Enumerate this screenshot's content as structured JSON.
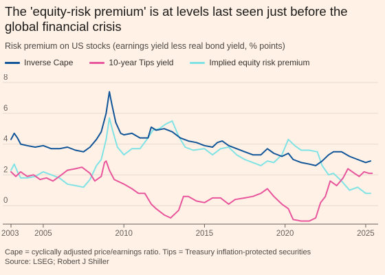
{
  "title": "The 'equity-risk premium' is at levels last seen just before the global financial crisis",
  "subtitle": "Risk premium on US stocks (earnings yield less real bond yield, % points)",
  "footnote": "Cape = cyclically adjusted price/earnings ratio. Tips = Treasury inflation-protected securities",
  "source": "Source: LSEG; Robert J Shiller",
  "chart_data": {
    "type": "line",
    "xlim": [
      2003,
      2025.6
    ],
    "ylim": [
      -1.2,
      8
    ],
    "yticks": [
      0,
      2,
      4,
      6,
      8
    ],
    "xticks": [
      2003,
      2005,
      2010,
      2015,
      2020,
      2025
    ],
    "grid": true,
    "legend_position": "top-left",
    "series": [
      {
        "name": "Inverse Cape",
        "color": "#0f5499",
        "points": [
          [
            2003,
            4.3
          ],
          [
            2003.2,
            4.7
          ],
          [
            2003.4,
            4.4
          ],
          [
            2003.6,
            4.0
          ],
          [
            2004.0,
            3.9
          ],
          [
            2004.5,
            3.8
          ],
          [
            2005.0,
            3.9
          ],
          [
            2005.5,
            3.7
          ],
          [
            2006.0,
            3.7
          ],
          [
            2006.5,
            3.8
          ],
          [
            2007.0,
            3.6
          ],
          [
            2007.5,
            3.5
          ],
          [
            2007.9,
            3.8
          ],
          [
            2008.3,
            4.3
          ],
          [
            2008.6,
            4.8
          ],
          [
            2008.9,
            6.0
          ],
          [
            2009.1,
            7.4
          ],
          [
            2009.25,
            6.6
          ],
          [
            2009.5,
            5.4
          ],
          [
            2009.8,
            4.7
          ],
          [
            2010.0,
            4.6
          ],
          [
            2010.5,
            4.7
          ],
          [
            2011.0,
            4.4
          ],
          [
            2011.5,
            4.4
          ],
          [
            2011.7,
            5.1
          ],
          [
            2012.0,
            4.9
          ],
          [
            2012.5,
            5.0
          ],
          [
            2013.0,
            4.8
          ],
          [
            2013.5,
            4.4
          ],
          [
            2014.0,
            4.2
          ],
          [
            2014.5,
            4.1
          ],
          [
            2015.0,
            3.9
          ],
          [
            2015.5,
            3.8
          ],
          [
            2015.8,
            4.1
          ],
          [
            2016.1,
            4.2
          ],
          [
            2016.5,
            3.9
          ],
          [
            2017.0,
            3.7
          ],
          [
            2017.5,
            3.5
          ],
          [
            2018.0,
            3.3
          ],
          [
            2018.5,
            3.3
          ],
          [
            2018.9,
            3.7
          ],
          [
            2019.3,
            3.4
          ],
          [
            2019.8,
            3.2
          ],
          [
            2020.2,
            3.4
          ],
          [
            2020.5,
            3.0
          ],
          [
            2021.0,
            2.8
          ],
          [
            2021.5,
            2.7
          ],
          [
            2021.9,
            2.6
          ],
          [
            2022.3,
            2.9
          ],
          [
            2022.7,
            3.3
          ],
          [
            2023.0,
            3.5
          ],
          [
            2023.5,
            3.5
          ],
          [
            2024.0,
            3.2
          ],
          [
            2024.5,
            3.0
          ],
          [
            2025.0,
            2.8
          ],
          [
            2025.3,
            2.9
          ]
        ]
      },
      {
        "name": "10-year Tips yield",
        "color": "#e8559c",
        "points": [
          [
            2003,
            2.2
          ],
          [
            2003.3,
            1.9
          ],
          [
            2003.6,
            2.2
          ],
          [
            2004.0,
            1.9
          ],
          [
            2004.4,
            2.0
          ],
          [
            2004.8,
            1.7
          ],
          [
            2005.2,
            1.8
          ],
          [
            2005.6,
            1.6
          ],
          [
            2006.0,
            1.9
          ],
          [
            2006.5,
            2.3
          ],
          [
            2007.0,
            2.4
          ],
          [
            2007.4,
            2.5
          ],
          [
            2007.9,
            2.1
          ],
          [
            2008.2,
            1.6
          ],
          [
            2008.6,
            1.9
          ],
          [
            2008.8,
            2.8
          ],
          [
            2008.9,
            2.9
          ],
          [
            2009.1,
            2.3
          ],
          [
            2009.4,
            1.7
          ],
          [
            2010.0,
            1.4
          ],
          [
            2010.5,
            1.1
          ],
          [
            2010.9,
            0.8
          ],
          [
            2011.3,
            0.8
          ],
          [
            2011.7,
            0.1
          ],
          [
            2012.0,
            -0.2
          ],
          [
            2012.5,
            -0.6
          ],
          [
            2012.9,
            -0.8
          ],
          [
            2013.4,
            -0.3
          ],
          [
            2013.7,
            0.6
          ],
          [
            2014.0,
            0.6
          ],
          [
            2014.5,
            0.3
          ],
          [
            2015.0,
            0.2
          ],
          [
            2015.5,
            0.5
          ],
          [
            2016.0,
            0.5
          ],
          [
            2016.5,
            0.1
          ],
          [
            2016.9,
            0.4
          ],
          [
            2017.5,
            0.5
          ],
          [
            2018.0,
            0.6
          ],
          [
            2018.5,
            0.8
          ],
          [
            2018.9,
            1.1
          ],
          [
            2019.3,
            0.6
          ],
          [
            2019.8,
            0.1
          ],
          [
            2020.2,
            -0.2
          ],
          [
            2020.5,
            -0.9
          ],
          [
            2021.0,
            -1.0
          ],
          [
            2021.5,
            -1.0
          ],
          [
            2021.9,
            -0.8
          ],
          [
            2022.2,
            0.2
          ],
          [
            2022.5,
            0.6
          ],
          [
            2022.8,
            1.6
          ],
          [
            2023.2,
            1.3
          ],
          [
            2023.6,
            1.8
          ],
          [
            2023.9,
            2.4
          ],
          [
            2024.3,
            2.1
          ],
          [
            2024.6,
            1.9
          ],
          [
            2024.9,
            2.2
          ],
          [
            2025.2,
            2.1
          ],
          [
            2025.4,
            2.1
          ]
        ]
      },
      {
        "name": "Implied equity risk premium",
        "color": "#7fe3e6",
        "points": [
          [
            2003,
            2.3
          ],
          [
            2003.2,
            2.7
          ],
          [
            2003.4,
            2.2
          ],
          [
            2003.6,
            1.8
          ],
          [
            2004.0,
            1.8
          ],
          [
            2004.5,
            1.9
          ],
          [
            2005.0,
            2.2
          ],
          [
            2005.5,
            2.0
          ],
          [
            2006.0,
            1.8
          ],
          [
            2006.5,
            1.4
          ],
          [
            2007.0,
            1.3
          ],
          [
            2007.5,
            1.2
          ],
          [
            2007.9,
            1.7
          ],
          [
            2008.3,
            2.6
          ],
          [
            2008.6,
            3.0
          ],
          [
            2008.9,
            4.3
          ],
          [
            2009.1,
            5.7
          ],
          [
            2009.3,
            4.9
          ],
          [
            2009.6,
            3.8
          ],
          [
            2010.0,
            3.3
          ],
          [
            2010.5,
            3.7
          ],
          [
            2011.0,
            3.7
          ],
          [
            2011.5,
            4.4
          ],
          [
            2011.8,
            4.9
          ],
          [
            2012.2,
            5.0
          ],
          [
            2012.6,
            5.3
          ],
          [
            2013.0,
            5.5
          ],
          [
            2013.4,
            4.5
          ],
          [
            2013.8,
            3.8
          ],
          [
            2014.3,
            3.6
          ],
          [
            2015.0,
            3.7
          ],
          [
            2015.5,
            3.3
          ],
          [
            2016.0,
            3.7
          ],
          [
            2016.5,
            3.8
          ],
          [
            2017.0,
            3.3
          ],
          [
            2017.5,
            3.0
          ],
          [
            2018.0,
            2.8
          ],
          [
            2018.5,
            2.6
          ],
          [
            2018.9,
            2.9
          ],
          [
            2019.3,
            2.8
          ],
          [
            2019.8,
            3.3
          ],
          [
            2020.2,
            4.3
          ],
          [
            2020.6,
            3.9
          ],
          [
            2021.0,
            3.6
          ],
          [
            2021.5,
            3.6
          ],
          [
            2022.0,
            3.5
          ],
          [
            2022.3,
            2.6
          ],
          [
            2022.7,
            2.0
          ],
          [
            2023.0,
            2.1
          ],
          [
            2023.5,
            1.6
          ],
          [
            2024.0,
            1.0
          ],
          [
            2024.5,
            1.2
          ],
          [
            2025.0,
            0.8
          ],
          [
            2025.3,
            0.8
          ]
        ]
      }
    ]
  }
}
